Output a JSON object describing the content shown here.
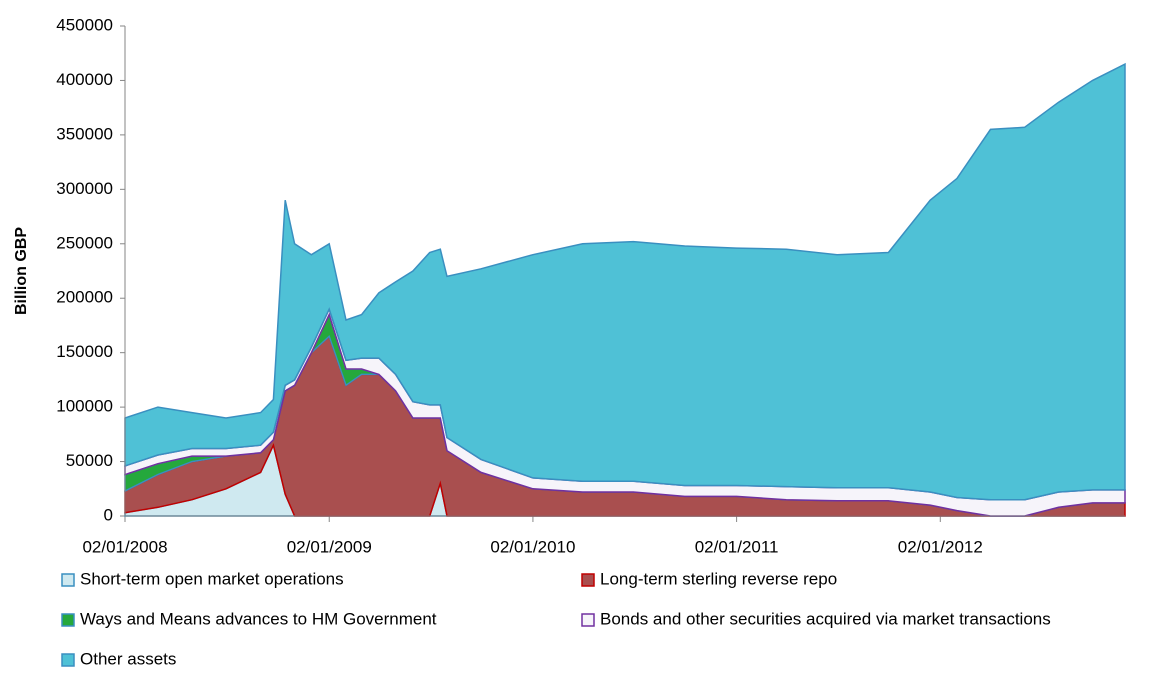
{
  "chart_data": {
    "type": "stacked-area",
    "y_label": "Billion GBP",
    "x": [
      "2008-01-02",
      "2008-03-01",
      "2008-05-01",
      "2008-07-01",
      "2008-09-01",
      "2008-09-24",
      "2008-10-15",
      "2008-11-01",
      "2008-12-01",
      "2009-01-02",
      "2009-02-01",
      "2009-03-01",
      "2009-04-01",
      "2009-05-01",
      "2009-06-01",
      "2009-07-01",
      "2009-07-20",
      "2009-08-01",
      "2009-10-01",
      "2010-01-02",
      "2010-04-01",
      "2010-07-01",
      "2010-10-01",
      "2011-01-02",
      "2011-04-01",
      "2011-07-01",
      "2011-10-01",
      "2011-12-15",
      "2012-02-01",
      "2012-04-01",
      "2012-06-01",
      "2012-08-01",
      "2012-10-01",
      "2012-11-28"
    ],
    "xlim": [
      "2008-01-02",
      "2012-11-28"
    ],
    "xticks": [
      {
        "value": "2008-01-02",
        "label": "02/01/2008"
      },
      {
        "value": "2009-01-02",
        "label": "02/01/2009"
      },
      {
        "value": "2010-01-02",
        "label": "02/01/2010"
      },
      {
        "value": "2011-01-02",
        "label": "02/01/2011"
      },
      {
        "value": "2012-01-02",
        "label": "02/01/2012"
      }
    ],
    "ylim": [
      0,
      450000
    ],
    "yticks": [
      0,
      50000,
      100000,
      150000,
      200000,
      250000,
      300000,
      350000,
      400000,
      450000
    ],
    "series": [
      {
        "name": "Short-term open market operations",
        "color": "#cfe9f0",
        "values": [
          3000,
          8000,
          15000,
          25000,
          40000,
          65000,
          20000,
          0,
          0,
          0,
          0,
          0,
          0,
          0,
          0,
          0,
          30000,
          0,
          0,
          0,
          0,
          0,
          0,
          0,
          0,
          0,
          0,
          0,
          0,
          0,
          0,
          0,
          0,
          0
        ]
      },
      {
        "name": "Long-term sterling reverse repo",
        "color": "#a94f4f",
        "values": [
          20000,
          30000,
          35000,
          30000,
          18000,
          5000,
          95000,
          120000,
          150000,
          165000,
          120000,
          130000,
          130000,
          115000,
          90000,
          90000,
          60000,
          60000,
          40000,
          25000,
          22000,
          22000,
          18000,
          18000,
          15000,
          14000,
          14000,
          10000,
          5000,
          0,
          0,
          8000,
          12000,
          12000
        ]
      },
      {
        "name": "Ways and Means advances to HM Government",
        "color": "#25a83c",
        "values": [
          15000,
          10000,
          5000,
          0,
          0,
          0,
          0,
          0,
          0,
          20000,
          15000,
          5000,
          0,
          0,
          0,
          0,
          0,
          0,
          0,
          0,
          0,
          0,
          0,
          0,
          0,
          0,
          0,
          0,
          0,
          0,
          0,
          0,
          0,
          0
        ]
      },
      {
        "name": "Bonds and other securities acquired via market transactions",
        "color": "#f6f4fa",
        "values": [
          8000,
          8000,
          7000,
          7000,
          7000,
          7000,
          5000,
          5000,
          5000,
          5000,
          8000,
          10000,
          15000,
          15000,
          15000,
          12000,
          12000,
          12000,
          12000,
          10000,
          10000,
          10000,
          10000,
          10000,
          12000,
          12000,
          12000,
          12000,
          12000,
          15000,
          15000,
          14000,
          12000,
          12000
        ]
      },
      {
        "name": "Other assets",
        "color": "#4fc1d6",
        "values": [
          44000,
          44000,
          33000,
          28000,
          30000,
          30000,
          170000,
          125000,
          85000,
          60000,
          37000,
          40000,
          60000,
          85000,
          120000,
          140000,
          143000,
          148000,
          175000,
          205000,
          218000,
          220000,
          220000,
          218000,
          218000,
          214000,
          216000,
          268000,
          293000,
          340000,
          342000,
          358000,
          376000,
          391000
        ]
      }
    ]
  }
}
